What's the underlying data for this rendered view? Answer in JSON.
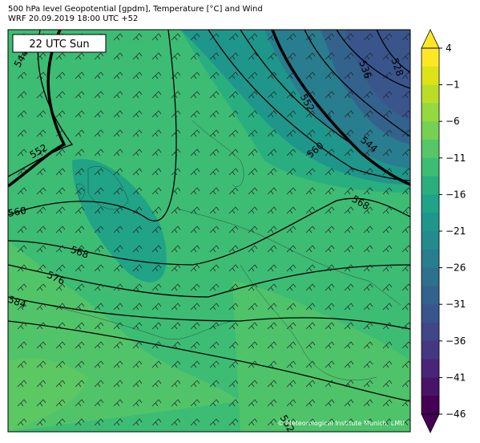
{
  "header": {
    "title": "500 hPa level Geopotential [gpdm], Temperature [°C] and Wind",
    "subtitle": "WRF 20.09.2019 18:00 UTC +52"
  },
  "time_label": "22 UTC Sun",
  "contour_labels": [
    "544",
    "552",
    "560",
    "568",
    "576",
    "584",
    "552",
    "560",
    "568",
    "544",
    "536",
    "528",
    "552"
  ],
  "copyright": "© Meteorological Institute Munich, LMU",
  "colorbar": {
    "lim": [
      -46,
      4
    ],
    "ticks": [
      {
        "value": 4,
        "label": "4"
      },
      {
        "value": -1,
        "label": "−1"
      },
      {
        "value": -6,
        "label": "−6"
      },
      {
        "value": -11,
        "label": "−11"
      },
      {
        "value": -16,
        "label": "−16"
      },
      {
        "value": -21,
        "label": "−21"
      },
      {
        "value": -26,
        "label": "−26"
      },
      {
        "value": -31,
        "label": "−31"
      },
      {
        "value": -36,
        "label": "−36"
      },
      {
        "value": -41,
        "label": "−41"
      },
      {
        "value": -46,
        "label": "−46"
      }
    ],
    "colors": [
      "#fde725",
      "#dde318",
      "#bade28",
      "#95d840",
      "#75d054",
      "#56c667",
      "#3dbc74",
      "#29af7f",
      "#20a386",
      "#1f968b",
      "#238a8d",
      "#287d8e",
      "#2d718e",
      "#33638d",
      "#39558c",
      "#404688",
      "#453781",
      "#482576",
      "#481467",
      "#440154"
    ]
  }
}
